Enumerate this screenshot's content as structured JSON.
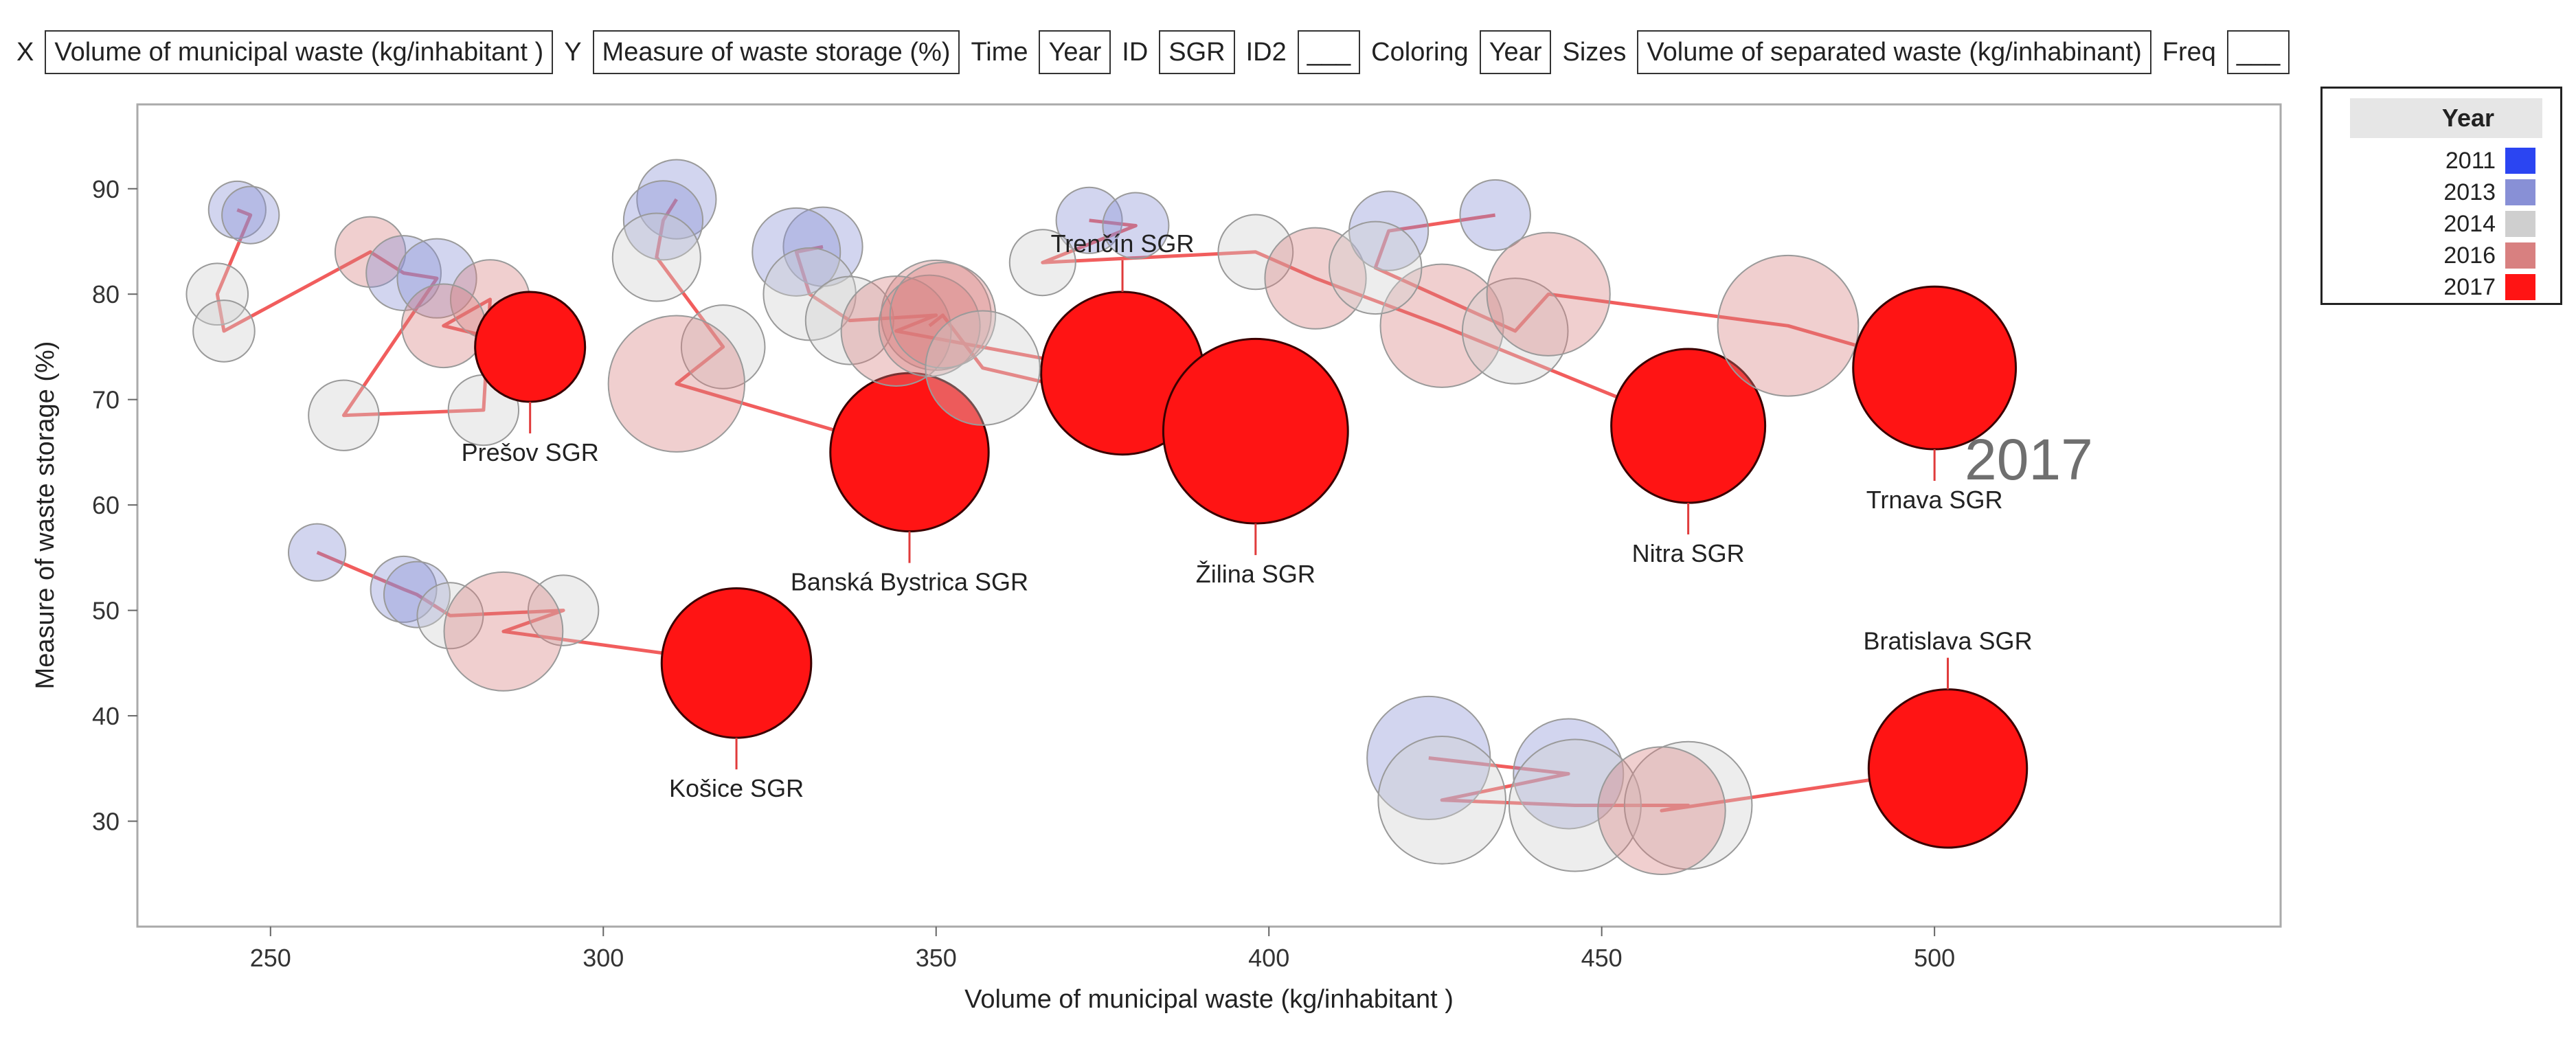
{
  "roles": {
    "x_label": "X",
    "x_value": "Volume of municipal waste (kg/inhabitant )",
    "y_label": "Y",
    "y_value": "Measure of waste storage (%)",
    "time_label": "Time",
    "time_value": "Year",
    "id_label": "ID",
    "id_value": "SGR",
    "id2_label": "ID2",
    "id2_value": "___",
    "coloring_label": "Coloring",
    "coloring_value": "Year",
    "sizes_label": "Sizes",
    "sizes_value": "Volume of separated waste (kg/inhabinant)",
    "freq_label": "Freq",
    "freq_value": "___"
  },
  "legend": {
    "title": "Year",
    "items": [
      {
        "label": "2011",
        "color": "#2b45f2"
      },
      {
        "label": "2013",
        "color": "#8890d6"
      },
      {
        "label": "2014",
        "color": "#cfcfcf"
      },
      {
        "label": "2016",
        "color": "#d88080"
      },
      {
        "label": "2017",
        "color": "#ff1414"
      }
    ]
  },
  "chart_data": {
    "type": "scatter",
    "subtype": "bubble",
    "xlabel": "Volume of municipal waste (kg/inhabitant )",
    "ylabel": "Measure of waste storage (%)",
    "xlim": [
      230,
      552
    ],
    "ylim": [
      20,
      98
    ],
    "xticks": [
      "250",
      "300",
      "350",
      "400",
      "450",
      "500"
    ],
    "yticks": [
      "30",
      "40",
      "50",
      "60",
      "70",
      "80",
      "90"
    ],
    "current_year": "2017",
    "series": [
      {
        "name": "Prešov SGR",
        "label_side": "below",
        "points": [
          {
            "x": 245,
            "y": 88,
            "s": 26,
            "c": "2013"
          },
          {
            "x": 247,
            "y": 87.5,
            "s": 26,
            "c": "2013"
          },
          {
            "x": 242,
            "y": 80,
            "s": 28,
            "c": "2014"
          },
          {
            "x": 243,
            "y": 76.5,
            "s": 28,
            "c": "2014"
          },
          {
            "x": 265,
            "y": 84,
            "s": 32,
            "c": "2016"
          },
          {
            "x": 270,
            "y": 82,
            "s": 34,
            "c": "2013"
          },
          {
            "x": 275,
            "y": 81.5,
            "s": 36,
            "c": "2013"
          },
          {
            "x": 261,
            "y": 68.5,
            "s": 32,
            "c": "2014"
          },
          {
            "x": 282,
            "y": 69,
            "s": 32,
            "c": "2014"
          },
          {
            "x": 283,
            "y": 79.5,
            "s": 36,
            "c": "2016"
          },
          {
            "x": 276,
            "y": 77,
            "s": 38,
            "c": "2016"
          },
          {
            "x": 289,
            "y": 75,
            "s": 50,
            "c": "2017"
          }
        ]
      },
      {
        "name": "Banská Bystrica SGR",
        "label_side": "below",
        "points": [
          {
            "x": 311,
            "y": 89,
            "s": 36,
            "c": "2013"
          },
          {
            "x": 309,
            "y": 87,
            "s": 36,
            "c": "2013"
          },
          {
            "x": 308,
            "y": 83.5,
            "s": 40,
            "c": "2014"
          },
          {
            "x": 318,
            "y": 75,
            "s": 38,
            "c": "2014"
          },
          {
            "x": 311,
            "y": 71.5,
            "s": 62,
            "c": "2016"
          },
          {
            "x": 346,
            "y": 65,
            "s": 72,
            "c": "2017"
          }
        ]
      },
      {
        "name": "Košice SGR",
        "label_side": "below",
        "points": [
          {
            "x": 257,
            "y": 55.5,
            "s": 26,
            "c": "2013"
          },
          {
            "x": 270,
            "y": 52,
            "s": 30,
            "c": "2013"
          },
          {
            "x": 272,
            "y": 51.5,
            "s": 30,
            "c": "2013"
          },
          {
            "x": 277,
            "y": 49.5,
            "s": 30,
            "c": "2014"
          },
          {
            "x": 294,
            "y": 50,
            "s": 32,
            "c": "2014"
          },
          {
            "x": 285,
            "y": 48,
            "s": 54,
            "c": "2016"
          },
          {
            "x": 320,
            "y": 45,
            "s": 68,
            "c": "2017"
          }
        ]
      },
      {
        "name": "Trenčín SGR",
        "label_side": "above",
        "points": [
          {
            "x": 333,
            "y": 84.5,
            "s": 36,
            "c": "2013"
          },
          {
            "x": 329,
            "y": 84,
            "s": 40,
            "c": "2013"
          },
          {
            "x": 331,
            "y": 80,
            "s": 42,
            "c": "2014"
          },
          {
            "x": 337,
            "y": 77.5,
            "s": 40,
            "c": "2014"
          },
          {
            "x": 350,
            "y": 78,
            "s": 50,
            "c": "2016"
          },
          {
            "x": 344,
            "y": 76.5,
            "s": 50,
            "c": "2016"
          },
          {
            "x": 378,
            "y": 72.5,
            "s": 74,
            "c": "2017"
          }
        ]
      },
      {
        "name": "Žilina SGR",
        "label_side": "below",
        "points": [
          {
            "x": 349,
            "y": 77,
            "s": 46,
            "c": "2016"
          },
          {
            "x": 351,
            "y": 78,
            "s": 48,
            "c": "2016"
          },
          {
            "x": 357,
            "y": 73,
            "s": 52,
            "c": "2014"
          },
          {
            "x": 398,
            "y": 67,
            "s": 84,
            "c": "2017"
          }
        ]
      },
      {
        "name": "Nitra SGR",
        "label_side": "below",
        "points": [
          {
            "x": 373,
            "y": 87,
            "s": 30,
            "c": "2013"
          },
          {
            "x": 380,
            "y": 86.5,
            "s": 30,
            "c": "2013"
          },
          {
            "x": 366,
            "y": 83,
            "s": 30,
            "c": "2014"
          },
          {
            "x": 398,
            "y": 84,
            "s": 34,
            "c": "2014"
          },
          {
            "x": 407,
            "y": 81.5,
            "s": 46,
            "c": "2016"
          },
          {
            "x": 426,
            "y": 77,
            "s": 56,
            "c": "2016"
          },
          {
            "x": 463,
            "y": 67.5,
            "s": 70,
            "c": "2017"
          }
        ]
      },
      {
        "name": "Trnava SGR",
        "label_side": "below",
        "points": [
          {
            "x": 434,
            "y": 87.5,
            "s": 32,
            "c": "2013"
          },
          {
            "x": 418,
            "y": 86,
            "s": 36,
            "c": "2013"
          },
          {
            "x": 416,
            "y": 82.5,
            "s": 42,
            "c": "2014"
          },
          {
            "x": 437,
            "y": 76.5,
            "s": 48,
            "c": "2014"
          },
          {
            "x": 442,
            "y": 80,
            "s": 56,
            "c": "2016"
          },
          {
            "x": 478,
            "y": 77,
            "s": 64,
            "c": "2016"
          },
          {
            "x": 500,
            "y": 73,
            "s": 74,
            "c": "2017"
          }
        ]
      },
      {
        "name": "Bratislava SGR",
        "label_side": "above",
        "points": [
          {
            "x": 424,
            "y": 36,
            "s": 56,
            "c": "2013"
          },
          {
            "x": 445,
            "y": 34.5,
            "s": 50,
            "c": "2013"
          },
          {
            "x": 426,
            "y": 32,
            "s": 58,
            "c": "2014"
          },
          {
            "x": 446,
            "y": 31.5,
            "s": 60,
            "c": "2014"
          },
          {
            "x": 463,
            "y": 31.5,
            "s": 58,
            "c": "2014"
          },
          {
            "x": 459,
            "y": 31,
            "s": 58,
            "c": "2016"
          },
          {
            "x": 502,
            "y": 35,
            "s": 72,
            "c": "2017"
          }
        ]
      }
    ]
  }
}
